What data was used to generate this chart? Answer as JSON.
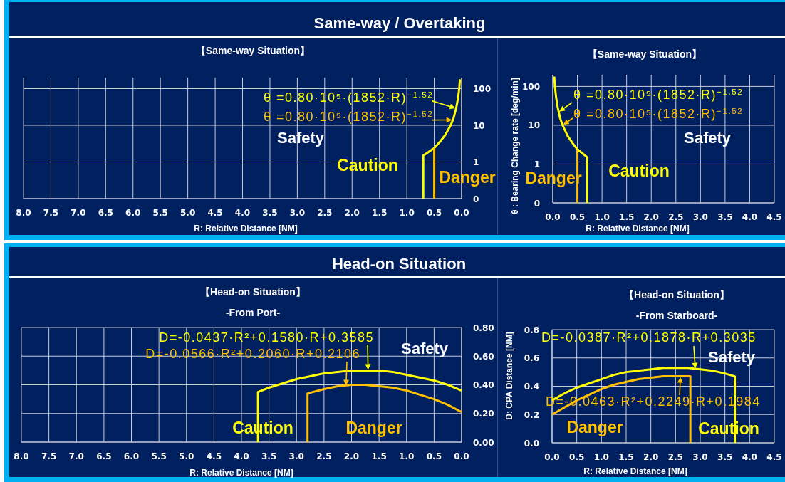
{
  "chart_data": [
    {
      "type": "line",
      "title": "【Same-way Situation】",
      "xlabel": "R: Relative Distance [NM]",
      "xlim": [
        8,
        0
      ],
      "xticks": [
        {
          "value": 8,
          "label": "8.0"
        },
        7.5,
        {
          "value": 7,
          "label": "7.0"
        },
        6.5,
        {
          "value": 6,
          "label": "6.0"
        },
        5.5,
        {
          "value": 5,
          "label": "5.0"
        },
        4.5,
        {
          "value": 4,
          "label": "4.0"
        },
        3.5,
        {
          "value": 3,
          "label": "3.0"
        },
        2.5,
        {
          "value": 2,
          "label": "2.0"
        },
        1.5,
        {
          "value": 1,
          "label": "1.0"
        },
        0.5,
        {
          "value": 0,
          "label": "0.0"
        }
      ],
      "ylim": [
        0.1,
        200
      ],
      "yticks": [
        {
          "value": 0.1,
          "label": "0"
        },
        1,
        10,
        100
      ],
      "log": "y",
      "grid": true,
      "series": [
        {
          "name": "Caution",
          "color": "#ffff00",
          "x": [
            0.7,
            0.7,
            0.5,
            0.4,
            0.3,
            0.2,
            0.15,
            0.1,
            0.07,
            0.05,
            0.04,
            0.03
          ],
          "values": [
            0.1,
            1.5,
            2.4,
            3.5,
            5.4,
            10,
            15,
            29,
            50,
            82,
            115,
            180
          ]
        },
        {
          "name": "Danger",
          "color": "#ffc000",
          "x": [
            0.5,
            0.5
          ],
          "values": [
            0.1,
            2.4
          ]
        }
      ],
      "annotations": [
        "Same-way / Overtaking",
        {
          "text": "θ =0.80·10⁵·(1852·R)$^{−1.52}$",
          "x": 0.1,
          "y": 29
        },
        {
          "text": "θ =0.80·10⁵·(1852·R)$^{−1.52}$",
          "x": 0.16,
          "y": 14
        },
        "Safety"
      ]
    },
    {
      "type": "line",
      "title": "【Same-way Situation】",
      "xlabel": "R: Relative Distance [NM]",
      "ylabel": "θ : Bearing Change rate [deg/min]",
      "xlim": [
        0,
        4.5
      ],
      "xticks": [
        {
          "value": 0,
          "label": "0.0"
        },
        0.5,
        {
          "value": 1,
          "label": "1.0"
        },
        1.5,
        {
          "value": 2,
          "label": "2.0"
        },
        2.5,
        {
          "value": 3,
          "label": "3.0"
        },
        3.5,
        {
          "value": 4,
          "label": "4.0"
        },
        4.5
      ],
      "ylim": [
        0.1,
        200
      ],
      "yticks": [
        {
          "value": 0.1,
          "label": "0"
        },
        1,
        10,
        100
      ],
      "log": "y",
      "grid": true,
      "series": [
        {
          "name": "Caution",
          "color": "#ffff00",
          "x": [
            0.7,
            0.7,
            0.5,
            0.4,
            0.3,
            0.2,
            0.15,
            0.1,
            0.07,
            0.05,
            0.04,
            0.03
          ],
          "values": [
            0.1,
            1.5,
            2.4,
            3.5,
            5.4,
            10,
            15,
            29,
            50,
            82,
            115,
            180
          ]
        },
        {
          "name": "Danger",
          "color": "#ffc000",
          "x": [
            0.5,
            0.5
          ],
          "values": [
            0.1,
            2.4
          ]
        }
      ],
      "annotations": [
        {
          "text": "θ =0.80·10⁵·(1852·R)$^{−1.52}$",
          "x": 0.12,
          "y": 22
        },
        {
          "text": "θ =0.80·10⁵·(1852·R)$^{−1.52}$",
          "x": 0.2,
          "y": 10
        },
        "Safety"
      ]
    },
    {
      "type": "line",
      "title": "【Head-on Situation】",
      "subtitle": "-From Port-",
      "xlabel": "R: Relative Distance [NM]",
      "xlim": [
        8,
        0
      ],
      "xticks": [
        {
          "value": 8,
          "label": "8.0"
        },
        7.5,
        {
          "value": 7,
          "label": "7.0"
        },
        6.5,
        {
          "value": 6,
          "label": "6.0"
        },
        5.5,
        {
          "value": 5,
          "label": "5.0"
        },
        4.5,
        {
          "value": 4,
          "label": "4.0"
        },
        3.5,
        {
          "value": 3,
          "label": "3.0"
        },
        2.5,
        {
          "value": 2,
          "label": "2.0"
        },
        1.5,
        {
          "value": 1,
          "label": "1.0"
        },
        0.5,
        {
          "value": 0,
          "label": "0.0"
        }
      ],
      "ylim": [
        0,
        0.8
      ],
      "yticks": [
        {
          "value": 0,
          "label": "0.00"
        },
        {
          "value": 0.2,
          "label": "0.20"
        },
        {
          "value": 0.4,
          "label": "0.40"
        },
        {
          "value": 0.6,
          "label": "0.60"
        },
        {
          "value": 0.8,
          "label": "0.80"
        }
      ],
      "grid": true,
      "series": [
        {
          "name": "Caution",
          "color": "#ffff00",
          "x": [
            0,
            0.25,
            0.5,
            0.75,
            1,
            1.25,
            1.5,
            1.75,
            2,
            2.25,
            2.5,
            2.75,
            3,
            3.25,
            3.5,
            3.7,
            3.7
          ],
          "values": [
            0.36,
            0.4,
            0.43,
            0.45,
            0.47,
            0.49,
            0.5,
            0.5,
            0.5,
            0.49,
            0.48,
            0.46,
            0.44,
            0.41,
            0.38,
            0.35,
            0
          ]
        },
        {
          "name": "Danger",
          "color": "#ffc000",
          "x": [
            0,
            0.25,
            0.5,
            0.75,
            1,
            1.25,
            1.5,
            1.75,
            2,
            2.25,
            2.5,
            2.8,
            2.8
          ],
          "values": [
            0.21,
            0.26,
            0.3,
            0.33,
            0.36,
            0.38,
            0.39,
            0.4,
            0.4,
            0.39,
            0.37,
            0.34,
            0
          ]
        }
      ],
      "annotations": [
        "Head-on Situation",
        {
          "text": "D=-0.0437·R²+0.1580·R+0.3585",
          "x": 1.7,
          "y": 0.5
        },
        {
          "text": "D=-0.0566·R²+0.2060·R+0.2106",
          "x": 2.1,
          "y": 0.39
        },
        "Safety"
      ]
    },
    {
      "type": "line",
      "title": "【Head-on Situation】",
      "subtitle": "-From Starboard-",
      "xlabel": "R: Relative Distance [NM]",
      "ylabel": "D: CPA Distance [NM]",
      "xlim": [
        0,
        4.5
      ],
      "xticks": [
        {
          "value": 0,
          "label": "0.0"
        },
        0.5,
        {
          "value": 1,
          "label": "1.0"
        },
        1.5,
        {
          "value": 2,
          "label": "2.0"
        },
        2.5,
        {
          "value": 3,
          "label": "3.0"
        },
        3.5,
        {
          "value": 4,
          "label": "4.0"
        },
        4.5
      ],
      "ylim": [
        0,
        0.8
      ],
      "yticks": [
        {
          "value": 0,
          "label": "0.0"
        },
        0.2,
        0.4,
        0.6,
        0.8
      ],
      "grid": true,
      "series": [
        {
          "name": "Caution",
          "color": "#ffff00",
          "x": [
            0,
            0.25,
            0.5,
            0.75,
            1,
            1.25,
            1.5,
            1.75,
            2,
            2.25,
            2.5,
            2.75,
            3,
            3.25,
            3.5,
            3.7,
            3.7
          ],
          "values": [
            0.3,
            0.35,
            0.39,
            0.42,
            0.45,
            0.48,
            0.5,
            0.51,
            0.52,
            0.53,
            0.53,
            0.53,
            0.52,
            0.51,
            0.49,
            0.47,
            0
          ]
        },
        {
          "name": "Danger",
          "color": "#ffc000",
          "x": [
            0,
            0.25,
            0.5,
            0.75,
            1,
            1.25,
            1.5,
            1.75,
            2,
            2.25,
            2.5,
            2.8,
            2.8
          ],
          "values": [
            0.2,
            0.25,
            0.3,
            0.34,
            0.38,
            0.41,
            0.43,
            0.45,
            0.46,
            0.47,
            0.47,
            0.47,
            0
          ]
        }
      ],
      "annotations": [
        {
          "text": "D=-0.0387·R²+0.1878·R+0.3035",
          "x": 2.9,
          "y": 0.52
        },
        {
          "text": "D=-0.0463·R²+0.2249·R+0.1984",
          "x": 2.6,
          "y": 0.47
        },
        "Safety"
      ]
    }
  ]
}
